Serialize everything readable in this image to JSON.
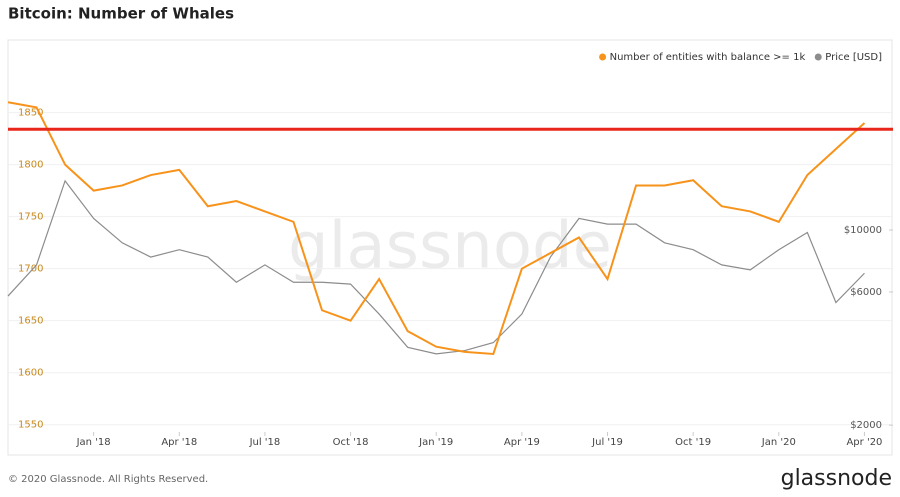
{
  "chart_data": {
    "type": "line",
    "title": "Bitcoin: Number of Whales",
    "footer": "© 2020 Glassnode. All Rights Reserved.",
    "logo": "glassnode",
    "watermark": "glassnode",
    "x": [
      "2017-10",
      "2017-11",
      "2017-12",
      "2018-01",
      "2018-02",
      "2018-03",
      "2018-04",
      "2018-05",
      "2018-06",
      "2018-07",
      "2018-08",
      "2018-09",
      "2018-10",
      "2018-11",
      "2018-12",
      "2019-01",
      "2019-02",
      "2019-03",
      "2019-04",
      "2019-05",
      "2019-06",
      "2019-07",
      "2019-08",
      "2019-09",
      "2019-10",
      "2019-11",
      "2019-12",
      "2020-01",
      "2020-02",
      "2020-03",
      "2020-04"
    ],
    "xlim": [
      "2017-10",
      "2020-05"
    ],
    "xticks": [
      {
        "value": "2018-01",
        "label": "Jan '18"
      },
      {
        "value": "2018-04",
        "label": "Apr '18"
      },
      {
        "value": "2018-07",
        "label": "Jul '18"
      },
      {
        "value": "2018-10",
        "label": "Oct '18"
      },
      {
        "value": "2019-01",
        "label": "Jan '19"
      },
      {
        "value": "2019-04",
        "label": "Apr '19"
      },
      {
        "value": "2019-07",
        "label": "Jul '19"
      },
      {
        "value": "2019-10",
        "label": "Oct '19"
      },
      {
        "value": "2020-01",
        "label": "Jan '20"
      },
      {
        "value": "2020-04",
        "label": "Apr '20"
      }
    ],
    "series": [
      {
        "name": "Number of entities with balance >= 1k",
        "color": "#f7931a",
        "values": [
          1860,
          1855,
          1800,
          1775,
          1780,
          1790,
          1795,
          1760,
          1765,
          1755,
          1745,
          1660,
          1650,
          1690,
          1640,
          1625,
          1620,
          1618,
          1700,
          1715,
          1730,
          1690,
          1780,
          1780,
          1785,
          1760,
          1755,
          1745,
          1790,
          1815,
          1840
        ]
      },
      {
        "name": "Price [USD]",
        "color": "#8c8c8c",
        "axis": "y2",
        "values": [
          5800,
          7500,
          15000,
          11000,
          9000,
          8000,
          8500,
          8000,
          6500,
          7500,
          6500,
          6500,
          6400,
          5000,
          3800,
          3600,
          3700,
          3950,
          5000,
          8000,
          11000,
          10500,
          10500,
          9000,
          8500,
          7500,
          7200,
          8500,
          9800,
          5500,
          7000
        ]
      }
    ],
    "ylim": [
      1543,
      1915
    ],
    "yticks": [
      1550,
      1600,
      1650,
      1700,
      1750,
      1800,
      1850
    ],
    "y2lim": [
      1890,
      46000
    ],
    "y2log": true,
    "y2ticks": [
      {
        "value": 2000,
        "label": "$2000"
      },
      {
        "value": 6000,
        "label": "$6000"
      },
      {
        "value": 10000,
        "label": "$10000"
      }
    ],
    "reference_line": {
      "value": 1834,
      "color": "#e8271a"
    },
    "grid": true,
    "legend": "top-right"
  }
}
